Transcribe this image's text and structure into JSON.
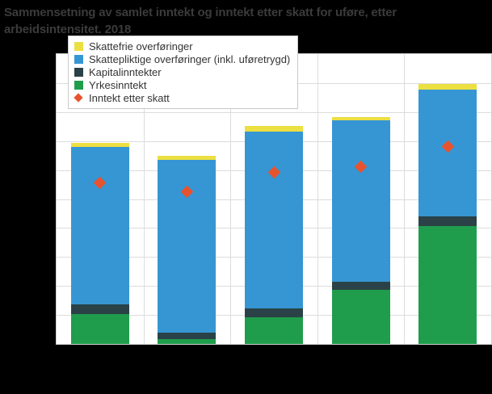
{
  "page": {
    "background_color": "#000000",
    "note": "Chart rendered on a black (transparent) background; axis tick labels and category labels are not visible in the image."
  },
  "chart": {
    "title_line1": "Sammensetning av samlet inntekt og inntekt etter skatt for uføre, etter",
    "title_line2": "arbeidsintensitet. 2018",
    "title_color": "#3b3b3b"
  },
  "chart_data": {
    "type": "bar",
    "stacked": true,
    "title": "Sammensetning av samlet inntekt og inntekt etter skatt for uføre, etter arbeidsintensitet. 2018",
    "categories": [
      "",
      "",
      "",
      "",
      ""
    ],
    "x_axis_note": "Category labels are not visible (text hidden against black background)",
    "y_axis_note": "Y-axis tick labels are not visible; values estimated in gridline units (0-10, one unit per horizontal gridline)",
    "ylim": [
      0,
      10
    ],
    "grid": true,
    "legend_position": "top-left overlay inside plot",
    "series": [
      {
        "name": "Yrkesinntekt",
        "color": "#1f9d4c",
        "values": [
          1.03,
          0.16,
          0.92,
          1.87,
          4.08
        ]
      },
      {
        "name": "Kapitalinntekter",
        "color": "#2a4247",
        "values": [
          0.33,
          0.22,
          0.31,
          0.27,
          0.33
        ]
      },
      {
        "name": "Skattepliktige overføringer (inkl. uføretrygd)",
        "color": "#3696d3",
        "values": [
          5.43,
          5.96,
          6.1,
          5.58,
          4.38
        ]
      },
      {
        "name": "Skattefrie overføringer",
        "color": "#ecdf41",
        "values": [
          0.14,
          0.16,
          0.2,
          0.12,
          0.17
        ]
      }
    ],
    "markers": {
      "name": "Inntekt etter skatt",
      "color": "#e8532f",
      "shape": "diamond",
      "values": [
        5.57,
        5.26,
        5.93,
        6.12,
        6.82
      ]
    },
    "stack_totals": [
      6.93,
      6.5,
      7.53,
      7.84,
      8.96
    ]
  },
  "colors": {
    "plot_background": "#ffffff",
    "plot_border": "#d0d0d0",
    "gridline": "#dcdcdc",
    "legend_border": "#c9c9c9",
    "legend_text": "#333333"
  }
}
